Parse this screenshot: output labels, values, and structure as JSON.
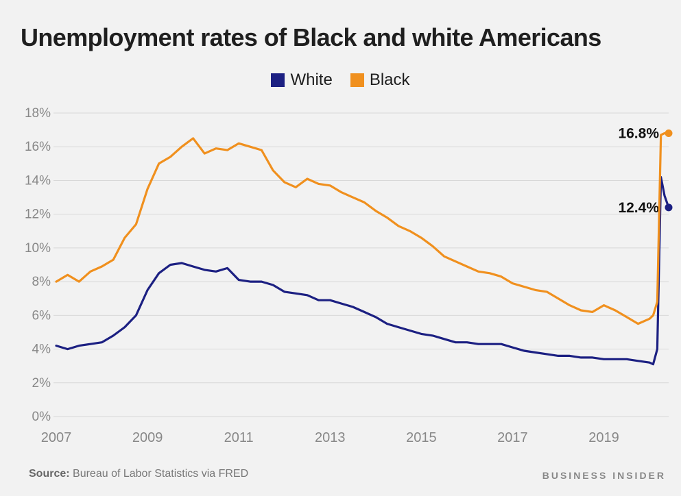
{
  "colors": {
    "white_series": "#1c2082",
    "black_series": "#f0901e",
    "grid": "#d8d8d8",
    "tick_text": "#888888"
  },
  "chart_data": {
    "type": "line",
    "title": "Unemployment rates of Black and white Americans",
    "xlabel": "",
    "ylabel": "",
    "xlim": [
      2007,
      2020.42
    ],
    "ylim": [
      0,
      18
    ],
    "grid": true,
    "legend_position": "top-center",
    "y_ticks": [
      "0%",
      "2%",
      "4%",
      "6%",
      "8%",
      "10%",
      "12%",
      "14%",
      "16%",
      "18%"
    ],
    "x_ticks": [
      "2007",
      "2009",
      "2011",
      "2013",
      "2015",
      "2017",
      "2019"
    ],
    "series": [
      {
        "name": "White",
        "color": "#1c2082",
        "end_label": "12.4%",
        "x": [
          2007.0,
          2007.25,
          2007.5,
          2007.75,
          2008.0,
          2008.25,
          2008.5,
          2008.75,
          2009.0,
          2009.25,
          2009.5,
          2009.75,
          2010.0,
          2010.25,
          2010.5,
          2010.75,
          2011.0,
          2011.25,
          2011.5,
          2011.75,
          2012.0,
          2012.25,
          2012.5,
          2012.75,
          2013.0,
          2013.25,
          2013.5,
          2013.75,
          2014.0,
          2014.25,
          2014.5,
          2014.75,
          2015.0,
          2015.25,
          2015.5,
          2015.75,
          2016.0,
          2016.25,
          2016.5,
          2016.75,
          2017.0,
          2017.25,
          2017.5,
          2017.75,
          2018.0,
          2018.25,
          2018.5,
          2018.75,
          2019.0,
          2019.25,
          2019.5,
          2019.75,
          2020.0,
          2020.08,
          2020.17,
          2020.25,
          2020.33,
          2020.42
        ],
        "values": [
          4.2,
          4.0,
          4.2,
          4.3,
          4.4,
          4.8,
          5.3,
          6.0,
          7.5,
          8.5,
          9.0,
          9.1,
          8.9,
          8.7,
          8.6,
          8.8,
          8.1,
          8.0,
          8.0,
          7.8,
          7.4,
          7.3,
          7.2,
          6.9,
          6.9,
          6.7,
          6.5,
          6.2,
          5.9,
          5.5,
          5.3,
          5.1,
          4.9,
          4.8,
          4.6,
          4.4,
          4.4,
          4.3,
          4.3,
          4.3,
          4.1,
          3.9,
          3.8,
          3.7,
          3.6,
          3.6,
          3.5,
          3.5,
          3.4,
          3.4,
          3.4,
          3.3,
          3.2,
          3.1,
          4.0,
          14.2,
          13.1,
          12.4
        ]
      },
      {
        "name": "Black",
        "color": "#f0901e",
        "end_label": "16.8%",
        "x": [
          2007.0,
          2007.25,
          2007.5,
          2007.75,
          2008.0,
          2008.25,
          2008.5,
          2008.75,
          2009.0,
          2009.25,
          2009.5,
          2009.75,
          2010.0,
          2010.25,
          2010.5,
          2010.75,
          2011.0,
          2011.25,
          2011.5,
          2011.75,
          2012.0,
          2012.25,
          2012.5,
          2012.75,
          2013.0,
          2013.25,
          2013.5,
          2013.75,
          2014.0,
          2014.25,
          2014.5,
          2014.75,
          2015.0,
          2015.25,
          2015.5,
          2015.75,
          2016.0,
          2016.25,
          2016.5,
          2016.75,
          2017.0,
          2017.25,
          2017.5,
          2017.75,
          2018.0,
          2018.25,
          2018.5,
          2018.75,
          2019.0,
          2019.25,
          2019.5,
          2019.75,
          2020.0,
          2020.08,
          2020.17,
          2020.25,
          2020.33,
          2020.42
        ],
        "values": [
          8.0,
          8.4,
          8.0,
          8.6,
          8.9,
          9.3,
          10.6,
          11.4,
          13.5,
          15.0,
          15.4,
          16.0,
          16.5,
          15.6,
          15.9,
          15.8,
          16.2,
          16.0,
          15.8,
          14.6,
          13.9,
          13.6,
          14.1,
          13.8,
          13.7,
          13.3,
          13.0,
          12.7,
          12.2,
          11.8,
          11.3,
          11.0,
          10.6,
          10.1,
          9.5,
          9.2,
          8.9,
          8.6,
          8.5,
          8.3,
          7.9,
          7.7,
          7.5,
          7.4,
          7.0,
          6.6,
          6.3,
          6.2,
          6.6,
          6.3,
          5.9,
          5.5,
          5.8,
          6.0,
          6.8,
          16.7,
          16.8,
          16.8
        ]
      }
    ]
  },
  "footer": {
    "source_label": "Source:",
    "source_text": "Bureau of Labor Statistics via FRED",
    "brand": "BUSINESS INSIDER"
  }
}
